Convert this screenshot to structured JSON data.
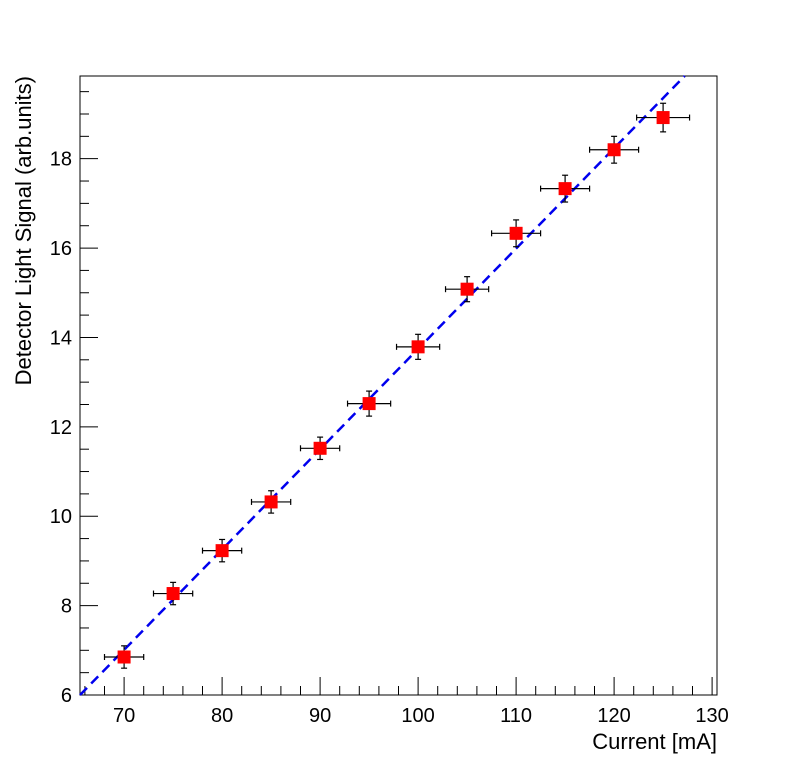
{
  "chart_data": {
    "type": "scatter",
    "xlabel": "Current [mA]",
    "ylabel": "Detector Light Signal (arb.units)",
    "xlim": [
      65.5,
      130.5
    ],
    "ylim": [
      6,
      19.85
    ],
    "x_ticks": [
      70,
      80,
      90,
      100,
      110,
      120,
      130
    ],
    "y_ticks": [
      6,
      8,
      10,
      12,
      14,
      16,
      18
    ],
    "grid": false,
    "legend": "none",
    "series": [
      {
        "marker": "square",
        "color": "#ff0000",
        "points": [
          {
            "x": 70,
            "y": 6.85,
            "xerr": 2.0,
            "yerr": 0.25
          },
          {
            "x": 75,
            "y": 8.27,
            "xerr": 2.0,
            "yerr": 0.25
          },
          {
            "x": 80,
            "y": 9.23,
            "xerr": 2.0,
            "yerr": 0.25
          },
          {
            "x": 85,
            "y": 10.32,
            "xerr": 2.0,
            "yerr": 0.25
          },
          {
            "x": 90,
            "y": 11.52,
            "xerr": 2.0,
            "yerr": 0.25
          },
          {
            "x": 95,
            "y": 12.52,
            "xerr": 2.2,
            "yerr": 0.28
          },
          {
            "x": 100,
            "y": 13.79,
            "xerr": 2.2,
            "yerr": 0.28
          },
          {
            "x": 105,
            "y": 15.08,
            "xerr": 2.2,
            "yerr": 0.28
          },
          {
            "x": 110,
            "y": 16.33,
            "xerr": 2.5,
            "yerr": 0.3
          },
          {
            "x": 115,
            "y": 17.33,
            "xerr": 2.5,
            "yerr": 0.3
          },
          {
            "x": 120,
            "y": 18.2,
            "xerr": 2.5,
            "yerr": 0.3
          },
          {
            "x": 125,
            "y": 18.92,
            "xerr": 2.7,
            "yerr": 0.32
          }
        ]
      }
    ],
    "fit_line": {
      "style": "dashed",
      "color": "#0000ee",
      "x": [
        65.5,
        127.2
      ],
      "y": [
        6.0,
        19.85
      ]
    }
  }
}
